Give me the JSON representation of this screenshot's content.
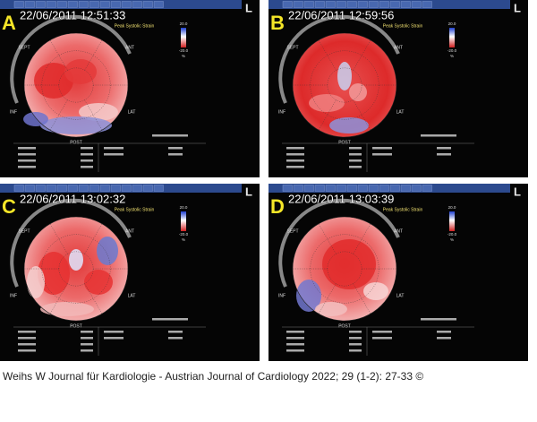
{
  "panels": [
    {
      "letter": "A",
      "timestamp": "22/06/2011 12:51:33",
      "title": "Peak Systolic Strain",
      "scale_max": "20.0",
      "scale_min": "-20.0",
      "scale_unit": "%",
      "corner": "L",
      "wall_labels": [
        "SEPT",
        "ANT",
        "LAT",
        "POST",
        "INF"
      ]
    },
    {
      "letter": "B",
      "timestamp": "22/06/2011 12:59:56",
      "title": "Peak Systolic Strain",
      "scale_max": "20.0",
      "scale_min": "-20.0",
      "scale_unit": "%",
      "corner": "L",
      "wall_labels": [
        "SEPT",
        "ANT",
        "LAT",
        "POST",
        "INF"
      ]
    },
    {
      "letter": "C",
      "timestamp": "22/06/2011 13:02:32",
      "title": "Peak Systolic Strain",
      "scale_max": "20.0",
      "scale_min": "-20.0",
      "scale_unit": "%",
      "corner": "L",
      "wall_labels": [
        "SEPT",
        "ANT",
        "LAT",
        "POST",
        "INF"
      ]
    },
    {
      "letter": "D",
      "timestamp": "22/06/2011 13:03:39",
      "title": "Peak Systolic Strain",
      "scale_max": "20.0",
      "scale_min": "-20.0",
      "scale_unit": "%",
      "corner": "L",
      "wall_labels": [
        "SEPT",
        "ANT",
        "LAT",
        "POST",
        "INF"
      ]
    }
  ],
  "caption": "Weihs W Journal für Kardiologie - Austrian Journal of Cardiology 2022; 29 (1-2): 27-33 ©"
}
